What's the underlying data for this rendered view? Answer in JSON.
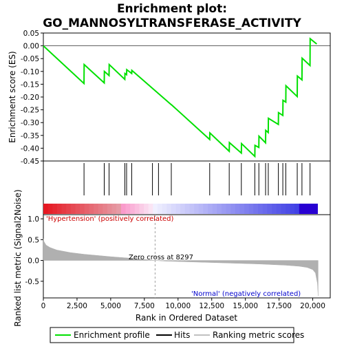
{
  "title_line1": "Enrichment plot:",
  "title_line2": "GO_MANNOSYLTRANSFERASE_ACTIVITY",
  "colors": {
    "enrichment_line": "#00e000",
    "hits": "#000000",
    "metric_fill": "#b0b0b0",
    "pos_label": "#cc0000",
    "neg_label": "#0000cc",
    "zero_line": "#a0a0a0"
  },
  "chart_data": [
    {
      "type": "line",
      "name": "enrichment-score-panel",
      "ylabel": "Enrichment score (ES)",
      "xlim": [
        0,
        21300
      ],
      "ylim": [
        -0.45,
        0.05
      ],
      "yticks": [
        0.05,
        0.0,
        -0.05,
        -0.1,
        -0.15,
        -0.2,
        -0.25,
        -0.3,
        -0.35,
        -0.4,
        -0.45
      ],
      "ytick_labels": [
        "0.05",
        "0.00",
        "-0.05",
        "-0.10",
        "-0.15",
        "-0.20",
        "-0.25",
        "-0.30",
        "-0.35",
        "-0.40",
        "-0.45"
      ],
      "series": [
        {
          "x": [
            0,
            3020,
            3030,
            4520,
            4530,
            4880,
            4890,
            6050,
            6060,
            6180,
            6190,
            6560,
            6570,
            9500,
            9510,
            12350,
            12360,
            13800,
            13810,
            14700,
            14710,
            15700,
            15710,
            16000,
            16010,
            16500,
            16510,
            16700,
            16710,
            17450,
            17460,
            17780,
            17790,
            18000,
            18010,
            18850,
            18860,
            19200,
            19210,
            19800,
            19810,
            20300
          ],
          "y": [
            0.0,
            -0.147,
            -0.073,
            -0.145,
            -0.1,
            -0.116,
            -0.073,
            -0.131,
            -0.108,
            -0.113,
            -0.093,
            -0.108,
            -0.096,
            -0.23,
            -0.23,
            -0.366,
            -0.34,
            -0.412,
            -0.378,
            -0.419,
            -0.382,
            -0.432,
            -0.389,
            -0.397,
            -0.353,
            -0.379,
            -0.33,
            -0.339,
            -0.283,
            -0.307,
            -0.261,
            -0.272,
            -0.213,
            -0.22,
            -0.156,
            -0.198,
            -0.118,
            -0.133,
            -0.048,
            -0.077,
            0.028,
            0.007
          ]
        }
      ]
    },
    {
      "type": "scatter",
      "name": "hits-panel",
      "hit_positions": [
        3020,
        4520,
        4880,
        6050,
        6180,
        6560,
        8100,
        8550,
        9500,
        12350,
        13800,
        14700,
        15700,
        16000,
        16500,
        16700,
        17450,
        17780,
        18000,
        18850,
        19200,
        19800
      ]
    },
    {
      "type": "area",
      "name": "ranked-metric-panel",
      "ylabel": "Ranked list metric (Signal2Noise)",
      "xlabel": "Rank in Ordered Dataset",
      "xlim": [
        0,
        21300
      ],
      "ylim": [
        -0.9,
        1.1
      ],
      "xticks": [
        0,
        2500,
        5000,
        7500,
        10000,
        12500,
        15000,
        17500,
        20000
      ],
      "xtick_labels": [
        "0",
        "2,500",
        "5,000",
        "7,500",
        "10,000",
        "12,500",
        "15,000",
        "17,500",
        "20,000"
      ],
      "yticks": [
        1.0,
        0.5,
        0.0,
        -0.5
      ],
      "ytick_labels": [
        "1.0",
        "0.5",
        "0.0",
        "-0.5"
      ],
      "x": [
        0,
        50,
        200,
        500,
        1000,
        2000,
        3000,
        4000,
        5000,
        6000,
        7000,
        8297,
        9000,
        10000,
        11000,
        12000,
        13000,
        14000,
        15000,
        16000,
        17000,
        18000,
        19000,
        19600,
        20000,
        20200,
        20350,
        20400
      ],
      "y": [
        0.52,
        0.45,
        0.37,
        0.31,
        0.25,
        0.19,
        0.15,
        0.12,
        0.09,
        0.065,
        0.04,
        0.0,
        -0.015,
        -0.025,
        -0.035,
        -0.045,
        -0.055,
        -0.065,
        -0.075,
        -0.085,
        -0.1,
        -0.115,
        -0.14,
        -0.17,
        -0.22,
        -0.3,
        -0.55,
        -0.85
      ],
      "zero_cross_label": "Zero cross at 8297",
      "zero_cross_rank": 8297,
      "pos_label": "'Hypertension' (positively correlated)",
      "neg_label": "'Normal' (negatively correlated)"
    }
  ],
  "legend": {
    "items": [
      {
        "label": "Enrichment profile",
        "kind": "line",
        "color": "#00e000"
      },
      {
        "label": "Hits",
        "kind": "line",
        "color": "#000000"
      },
      {
        "label": "Ranking metric scores",
        "kind": "line",
        "color": "#c0c0c0"
      }
    ]
  }
}
